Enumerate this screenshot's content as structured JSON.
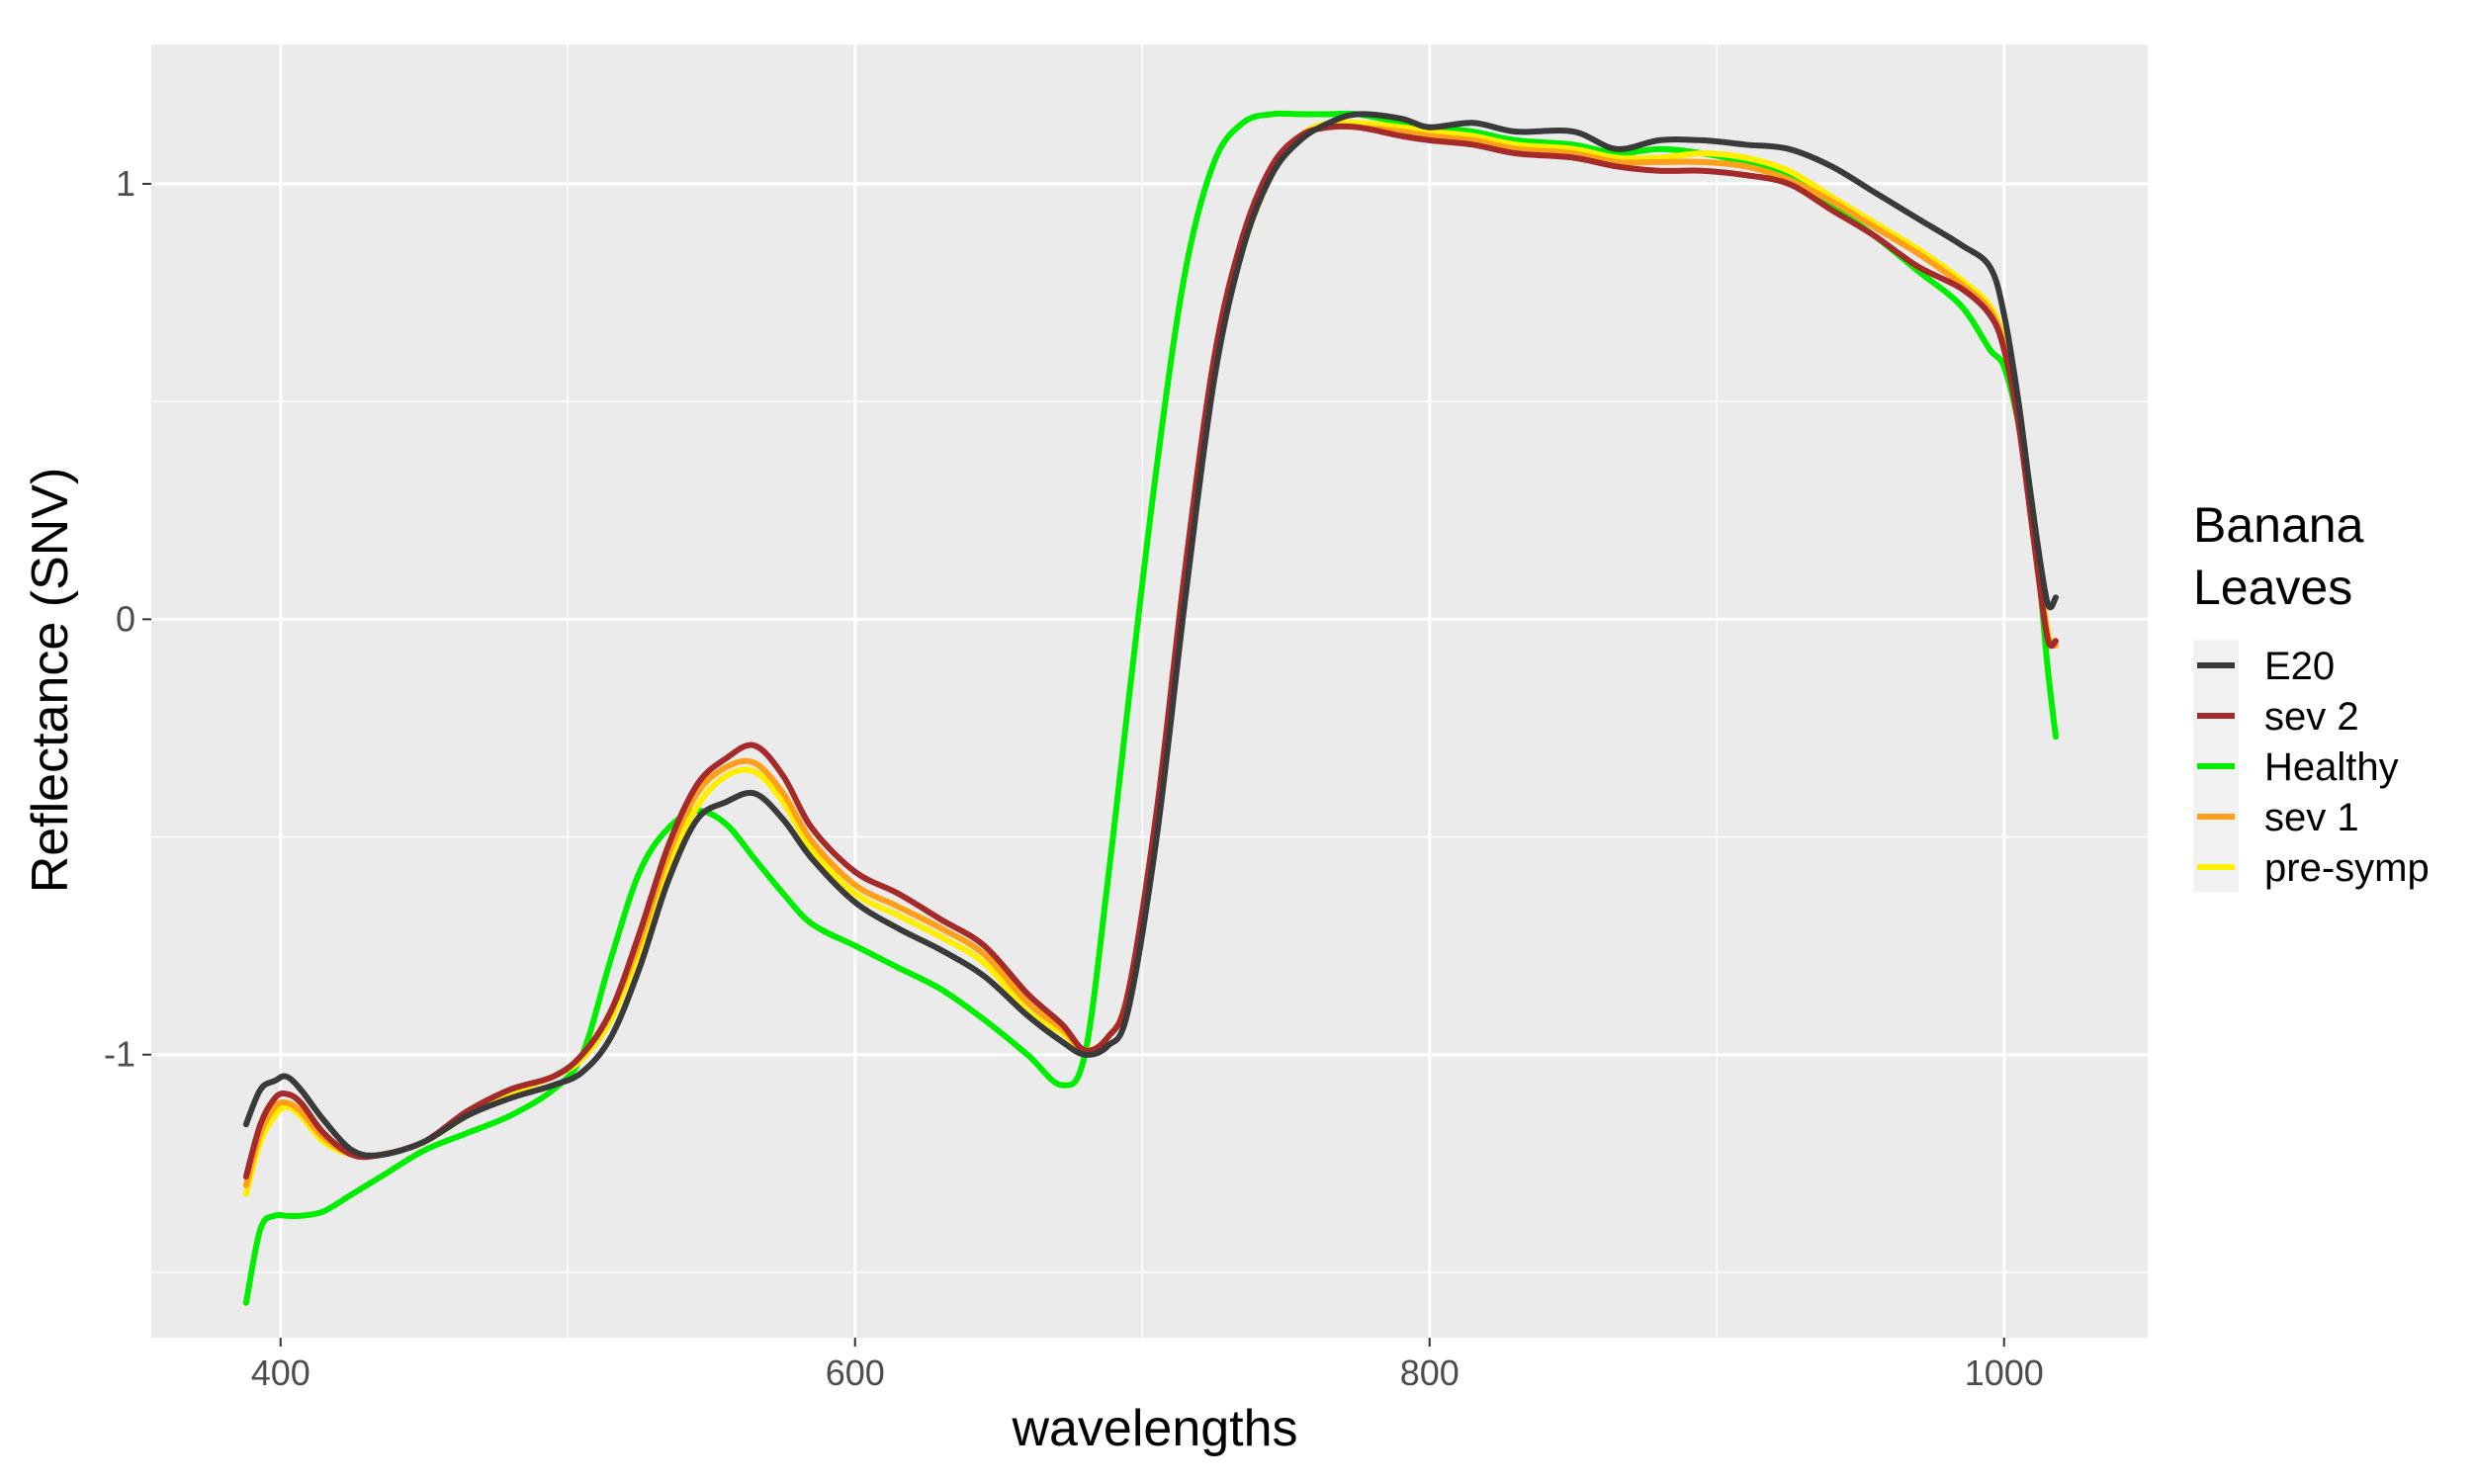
{
  "chart_data": {
    "type": "line",
    "title": "",
    "xlabel": "wavelengths",
    "ylabel": "Reflectance (SNV)",
    "xlim": [
      355,
      1050
    ],
    "ylim": [
      -1.65,
      1.32
    ],
    "xticks": [
      400,
      600,
      800,
      1000
    ],
    "xtick_labels": [
      "400",
      "600",
      "800",
      "1000"
    ],
    "yticks": [
      -1,
      0,
      1
    ],
    "ytick_labels": [
      "-1",
      "0",
      "1"
    ],
    "grid": true,
    "legend": {
      "title_lines": [
        "Banana",
        "Leaves"
      ],
      "placement": "right"
    },
    "x": [
      388,
      393,
      398,
      402,
      407,
      415,
      425,
      435,
      450,
      465,
      480,
      495,
      505,
      515,
      525,
      535,
      545,
      555,
      565,
      575,
      585,
      600,
      615,
      630,
      645,
      660,
      672,
      680,
      688,
      695,
      705,
      715,
      725,
      735,
      745,
      755,
      765,
      775,
      790,
      800,
      815,
      830,
      850,
      865,
      880,
      895,
      910,
      925,
      940,
      955,
      970,
      985,
      995,
      1000,
      1005,
      1010,
      1015,
      1018
    ],
    "series": [
      {
        "name": "E20",
        "color": "#3a3a3a",
        "values": [
          -1.16,
          -1.08,
          -1.06,
          -1.05,
          -1.08,
          -1.15,
          -1.22,
          -1.23,
          -1.2,
          -1.14,
          -1.1,
          -1.07,
          -1.04,
          -0.96,
          -0.8,
          -0.6,
          -0.46,
          -0.42,
          -0.4,
          -0.46,
          -0.55,
          -0.65,
          -0.71,
          -0.76,
          -0.82,
          -0.91,
          -0.97,
          -1.0,
          -0.98,
          -0.9,
          -0.5,
          0.05,
          0.55,
          0.85,
          1.02,
          1.1,
          1.14,
          1.16,
          1.15,
          1.13,
          1.14,
          1.12,
          1.12,
          1.08,
          1.1,
          1.1,
          1.09,
          1.08,
          1.04,
          0.98,
          0.92,
          0.86,
          0.81,
          0.7,
          0.5,
          0.25,
          0.04,
          0.05
        ]
      },
      {
        "name": "sev 2",
        "color": "#a52a2a",
        "values": [
          -1.28,
          -1.16,
          -1.1,
          -1.09,
          -1.11,
          -1.18,
          -1.23,
          -1.23,
          -1.2,
          -1.13,
          -1.08,
          -1.05,
          -1.0,
          -0.9,
          -0.72,
          -0.52,
          -0.38,
          -0.32,
          -0.29,
          -0.36,
          -0.48,
          -0.58,
          -0.63,
          -0.69,
          -0.75,
          -0.86,
          -0.93,
          -0.99,
          -0.96,
          -0.86,
          -0.44,
          0.12,
          0.6,
          0.88,
          1.04,
          1.11,
          1.13,
          1.13,
          1.11,
          1.1,
          1.09,
          1.07,
          1.06,
          1.04,
          1.03,
          1.03,
          1.02,
          1.0,
          0.94,
          0.88,
          0.81,
          0.76,
          0.7,
          0.62,
          0.45,
          0.2,
          -0.04,
          -0.05
        ]
      },
      {
        "name": "Healthy",
        "color": "#00ee00",
        "values": [
          -1.57,
          -1.4,
          -1.37,
          -1.37,
          -1.37,
          -1.36,
          -1.32,
          -1.28,
          -1.22,
          -1.18,
          -1.14,
          -1.08,
          -1.0,
          -0.78,
          -0.58,
          -0.48,
          -0.44,
          -0.47,
          -0.55,
          -0.63,
          -0.7,
          -0.75,
          -0.8,
          -0.85,
          -0.92,
          -1.0,
          -1.07,
          -1.0,
          -0.6,
          -0.2,
          0.35,
          0.8,
          1.05,
          1.14,
          1.16,
          1.16,
          1.16,
          1.16,
          1.14,
          1.13,
          1.12,
          1.1,
          1.09,
          1.07,
          1.08,
          1.07,
          1.05,
          1.02,
          0.95,
          0.88,
          0.8,
          0.72,
          0.62,
          0.58,
          0.45,
          0.25,
          -0.1,
          -0.27
        ]
      },
      {
        "name": "sev 1",
        "color": "#ff9f1a",
        "values": [
          -1.3,
          -1.18,
          -1.12,
          -1.11,
          -1.13,
          -1.19,
          -1.23,
          -1.23,
          -1.2,
          -1.13,
          -1.08,
          -1.05,
          -1.0,
          -0.9,
          -0.74,
          -0.54,
          -0.4,
          -0.34,
          -0.33,
          -0.4,
          -0.51,
          -0.61,
          -0.66,
          -0.71,
          -0.77,
          -0.88,
          -0.94,
          -0.99,
          -0.96,
          -0.86,
          -0.46,
          0.1,
          0.58,
          0.86,
          1.03,
          1.11,
          1.13,
          1.13,
          1.12,
          1.11,
          1.1,
          1.08,
          1.07,
          1.05,
          1.05,
          1.05,
          1.04,
          1.01,
          0.96,
          0.9,
          0.84,
          0.77,
          0.71,
          0.63,
          0.46,
          0.22,
          -0.03,
          -0.06
        ]
      },
      {
        "name": "pre-symp",
        "color": "#ffee00",
        "values": [
          -1.32,
          -1.2,
          -1.14,
          -1.12,
          -1.14,
          -1.2,
          -1.23,
          -1.23,
          -1.2,
          -1.14,
          -1.09,
          -1.05,
          -1.01,
          -0.92,
          -0.76,
          -0.57,
          -0.43,
          -0.36,
          -0.35,
          -0.42,
          -0.53,
          -0.63,
          -0.68,
          -0.73,
          -0.79,
          -0.9,
          -0.95,
          -0.99,
          -0.96,
          -0.86,
          -0.47,
          0.08,
          0.56,
          0.85,
          1.02,
          1.11,
          1.14,
          1.14,
          1.13,
          1.12,
          1.11,
          1.09,
          1.08,
          1.06,
          1.06,
          1.07,
          1.06,
          1.03,
          0.97,
          0.91,
          0.85,
          0.78,
          0.72,
          0.64,
          0.47,
          0.22,
          -0.02,
          -0.06
        ]
      }
    ]
  }
}
